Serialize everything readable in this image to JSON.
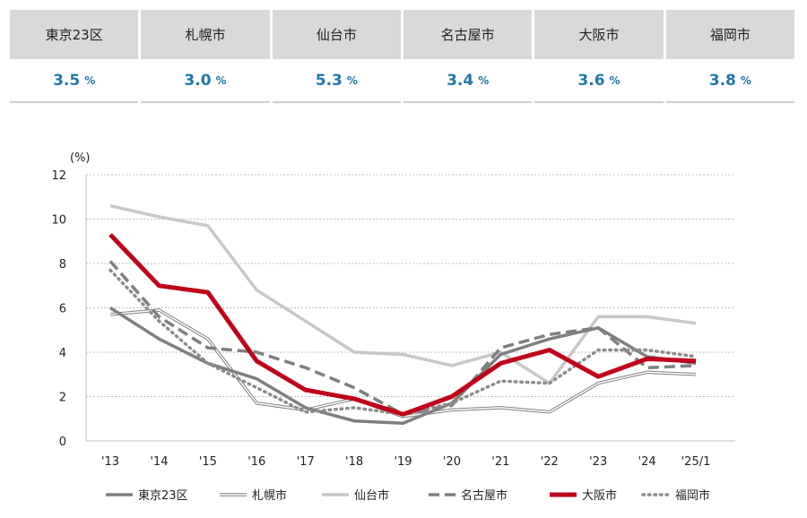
{
  "summary": {
    "cities": [
      {
        "name": "東京23区",
        "value": "3.5",
        "unit": "%"
      },
      {
        "name": "札幌市",
        "value": "3.0",
        "unit": "%"
      },
      {
        "name": "仙台市",
        "value": "5.3",
        "unit": "%"
      },
      {
        "name": "名古屋市",
        "value": "3.4",
        "unit": "%"
      },
      {
        "name": "大阪市",
        "value": "3.6",
        "unit": "%"
      },
      {
        "name": "福岡市",
        "value": "3.8",
        "unit": "%"
      }
    ]
  },
  "colors": {
    "accent": "#1f78a8",
    "header_bg": "#d9d9d9"
  },
  "chart_data": {
    "type": "line",
    "ylabel": "(%)",
    "ylim": [
      0,
      12
    ],
    "yticks": [
      0,
      2,
      4,
      6,
      8,
      10,
      12
    ],
    "grid": true,
    "categories": [
      "'13",
      "'14",
      "'15",
      "'16",
      "'17",
      "'18",
      "'19",
      "'20",
      "'21",
      "'22",
      "'23",
      "'24",
      "'25/1"
    ],
    "series": [
      {
        "name": "東京23区",
        "style": "solid-gray",
        "color": "#7f7f7f",
        "values": [
          6.0,
          4.6,
          3.5,
          2.8,
          1.5,
          0.9,
          0.8,
          1.7,
          3.9,
          4.6,
          5.1,
          3.8,
          3.5
        ]
      },
      {
        "name": "札幌市",
        "style": "double-line",
        "color": "#7f7f7f",
        "values": [
          5.7,
          5.9,
          4.6,
          1.7,
          1.4,
          1.9,
          1.1,
          1.4,
          1.5,
          1.3,
          2.6,
          3.1,
          3.0
        ]
      },
      {
        "name": "仙台市",
        "style": "light-gray",
        "color": "#c8c8c8",
        "values": [
          10.6,
          10.1,
          9.7,
          6.8,
          5.4,
          4.0,
          3.9,
          3.4,
          4.0,
          2.6,
          5.6,
          5.6,
          5.3
        ]
      },
      {
        "name": "名古屋市",
        "style": "dashed",
        "color": "#7f7f7f",
        "values": [
          8.1,
          5.6,
          4.2,
          4.0,
          3.3,
          2.4,
          1.2,
          1.6,
          4.2,
          4.8,
          5.1,
          3.3,
          3.4
        ]
      },
      {
        "name": "大阪市",
        "style": "bold-red",
        "color": "#c00018",
        "values": [
          9.3,
          7.0,
          6.7,
          3.6,
          2.3,
          1.9,
          1.2,
          2.0,
          3.5,
          4.1,
          2.9,
          3.7,
          3.6
        ]
      },
      {
        "name": "福岡市",
        "style": "dotted",
        "color": "#8c8c8c",
        "values": [
          7.7,
          5.4,
          3.5,
          2.4,
          1.3,
          1.5,
          1.2,
          1.7,
          2.7,
          2.6,
          4.1,
          4.1,
          3.8
        ]
      }
    ]
  }
}
